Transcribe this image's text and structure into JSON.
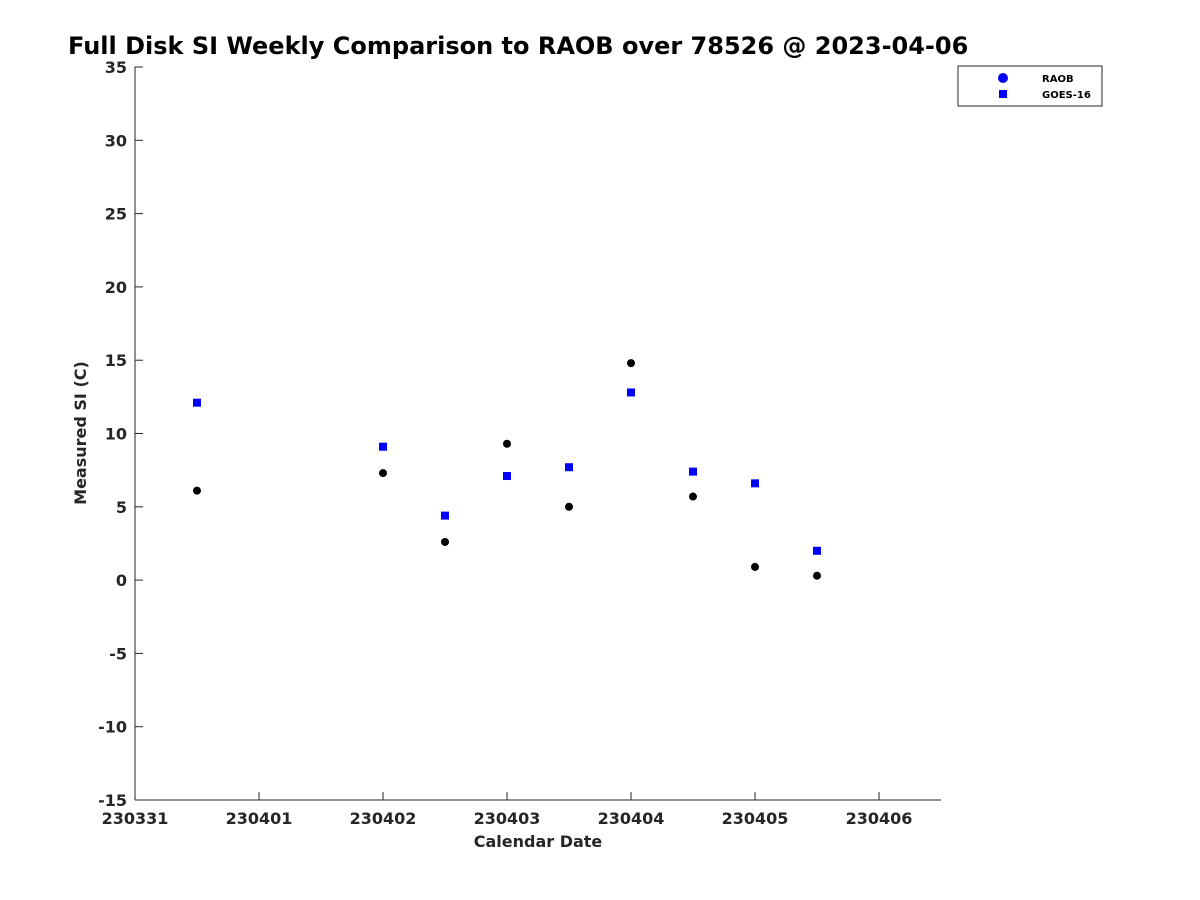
{
  "chart_data": {
    "type": "scatter",
    "title": "Full Disk SI Weekly Comparison to RAOB over 78526 @ 2023-04-06",
    "xlabel": "Calendar Date",
    "ylabel": "Measured SI (C)",
    "xlim": [
      0,
      6.5
    ],
    "ylim": [
      -15,
      35
    ],
    "x_ticks": [
      {
        "value": 0,
        "label": "230331"
      },
      {
        "value": 1,
        "label": "230401"
      },
      {
        "value": 2,
        "label": "230402"
      },
      {
        "value": 3,
        "label": "230403"
      },
      {
        "value": 4,
        "label": "230404"
      },
      {
        "value": 5,
        "label": "230405"
      },
      {
        "value": 6,
        "label": "230406"
      }
    ],
    "y_ticks": [
      35,
      30,
      25,
      20,
      15,
      10,
      5,
      0,
      -5,
      -10,
      -15
    ],
    "grid": false,
    "legend_position": "top-right",
    "series": [
      {
        "name": "RAOB",
        "marker": "circle",
        "color": "#000000",
        "legend_color": "#0000ff",
        "points": [
          {
            "x": 0.5,
            "y": 6.1
          },
          {
            "x": 2.0,
            "y": 7.3
          },
          {
            "x": 2.5,
            "y": 2.6
          },
          {
            "x": 3.0,
            "y": 9.3
          },
          {
            "x": 3.5,
            "y": 5.0
          },
          {
            "x": 4.0,
            "y": 14.8
          },
          {
            "x": 4.5,
            "y": 5.7
          },
          {
            "x": 5.0,
            "y": 0.9
          },
          {
            "x": 5.5,
            "y": 0.3
          }
        ]
      },
      {
        "name": "GOES-16",
        "marker": "square",
        "color": "#0000ff",
        "legend_color": "#0000ff",
        "points": [
          {
            "x": 0.5,
            "y": 12.1
          },
          {
            "x": 2.0,
            "y": 9.1
          },
          {
            "x": 2.5,
            "y": 4.4
          },
          {
            "x": 3.0,
            "y": 7.1
          },
          {
            "x": 3.5,
            "y": 7.7
          },
          {
            "x": 4.0,
            "y": 12.8
          },
          {
            "x": 4.5,
            "y": 7.4
          },
          {
            "x": 5.0,
            "y": 6.6
          },
          {
            "x": 5.5,
            "y": 2.0
          }
        ]
      }
    ]
  }
}
